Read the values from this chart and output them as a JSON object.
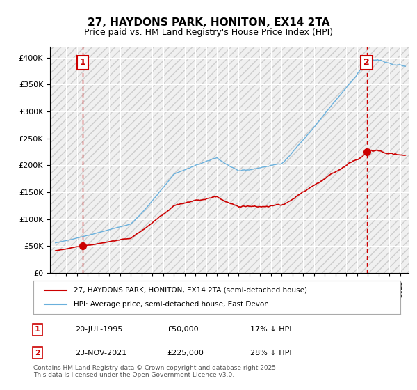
{
  "title": "27, HAYDONS PARK, HONITON, EX14 2TA",
  "subtitle": "Price paid vs. HM Land Registry's House Price Index (HPI)",
  "legend_line1": "27, HAYDONS PARK, HONITON, EX14 2TA (semi-detached house)",
  "legend_line2": "HPI: Average price, semi-detached house, East Devon",
  "annotation1_label": "1",
  "annotation1_date": "20-JUL-1995",
  "annotation1_price": "£50,000",
  "annotation1_hpi": "17% ↓ HPI",
  "annotation2_label": "2",
  "annotation2_date": "23-NOV-2021",
  "annotation2_price": "£225,000",
  "annotation2_hpi": "28% ↓ HPI",
  "footer": "Contains HM Land Registry data © Crown copyright and database right 2025.\nThis data is licensed under the Open Government Licence v3.0.",
  "sale1_year": 1995.55,
  "sale1_value": 50000,
  "sale2_year": 2021.9,
  "sale2_value": 225000,
  "hpi_color": "#6ab0dc",
  "price_color": "#cc0000",
  "annotation_color": "#cc0000",
  "background_hatch_color": "#e8e8e8",
  "ylim_max": 420000,
  "ylim_min": 0
}
